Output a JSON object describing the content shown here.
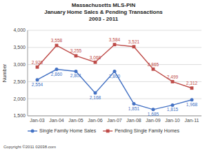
{
  "chart_data": {
    "type": "line",
    "title": "Massachusetts MLS-PIN\nJanuary Home Sales & Pending Transactions\n2003 - 2011",
    "y_label": "Number",
    "annotations": [
      "Copyright ©2011 02038.com"
    ],
    "categories": [
      "Jan-03",
      "Jan-04",
      "Jan-05",
      "Jan-06",
      "Jan-07",
      "Jan-08",
      "Jan-09",
      "Jan-10",
      "Jan-11"
    ],
    "series": [
      {
        "name": "Single Family Home Sales",
        "color": "#4472C4",
        "marker": "circle",
        "values": [
          2554,
          2860,
          2801,
          2168,
          2800,
          1851,
          1685,
          1815,
          1968
        ],
        "value_labels": [
          "2,554",
          "2,860",
          "2,801",
          "2,168",
          "2,800",
          "1,851",
          "1,685",
          "1,815",
          "1,968"
        ]
      },
      {
        "name": "Pending Single Family Homes",
        "color": "#BE4B48",
        "marker": "square",
        "values": [
          2926,
          3558,
          3255,
          3068,
          3584,
          3521,
          2865,
          2499,
          2312
        ],
        "value_labels": [
          "2,926",
          "3,558",
          "3,255",
          "3,068",
          "3,584",
          "3,521",
          "2,865",
          "2,499",
          "2,312"
        ]
      }
    ],
    "ylim": [
      1500,
      4000
    ],
    "yticks": [
      {
        "value": 1500,
        "label": "1,500"
      },
      {
        "value": 2000,
        "label": "2,000"
      },
      {
        "value": 2500,
        "label": "2,500"
      },
      {
        "value": 3000,
        "label": "3,000"
      },
      {
        "value": 3500,
        "label": "3,500"
      },
      {
        "value": 4000,
        "label": "4,000"
      }
    ],
    "grid": true,
    "legend": "bottom",
    "data_labels": true
  }
}
